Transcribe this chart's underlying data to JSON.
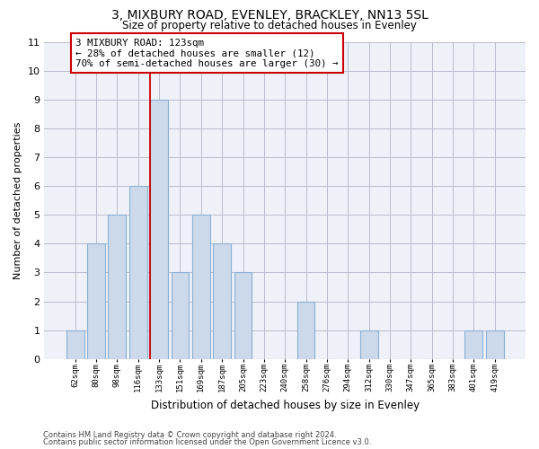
{
  "title1": "3, MIXBURY ROAD, EVENLEY, BRACKLEY, NN13 5SL",
  "title2": "Size of property relative to detached houses in Evenley",
  "xlabel": "Distribution of detached houses by size in Evenley",
  "ylabel": "Number of detached properties",
  "categories": [
    "62sqm",
    "80sqm",
    "98sqm",
    "116sqm",
    "133sqm",
    "151sqm",
    "169sqm",
    "187sqm",
    "205sqm",
    "223sqm",
    "240sqm",
    "258sqm",
    "276sqm",
    "294sqm",
    "312sqm",
    "330sqm",
    "347sqm",
    "365sqm",
    "383sqm",
    "401sqm",
    "419sqm"
  ],
  "values": [
    1,
    4,
    5,
    6,
    9,
    3,
    5,
    4,
    3,
    0,
    0,
    2,
    0,
    0,
    1,
    0,
    0,
    0,
    0,
    1,
    1
  ],
  "bar_color": "#ccd9ea",
  "bar_edge_color": "#8bafd4",
  "highlight_line_index": 4,
  "annotation_text": "3 MIXBURY ROAD: 123sqm\n← 28% of detached houses are smaller (12)\n70% of semi-detached houses are larger (30) →",
  "annotation_box_color": "white",
  "annotation_box_edge": "#cc0000",
  "ylim": [
    0,
    11
  ],
  "yticks": [
    0,
    1,
    2,
    3,
    4,
    5,
    6,
    7,
    8,
    9,
    10,
    11
  ],
  "grid_color": "#bbbbcc",
  "bg_color": "#eef2f8",
  "footer1": "Contains HM Land Registry data © Crown copyright and database right 2024.",
  "footer2": "Contains public sector information licensed under the Open Government Licence v3.0."
}
